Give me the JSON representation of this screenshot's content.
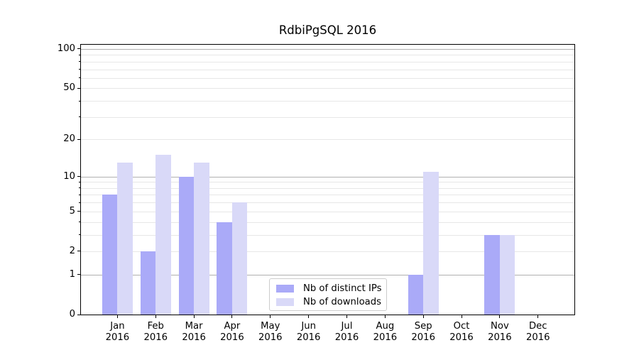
{
  "title": "RdbiPgSQL 2016",
  "year": "2016",
  "months": [
    "Jan",
    "Feb",
    "Mar",
    "Apr",
    "May",
    "Jun",
    "Jul",
    "Aug",
    "Sep",
    "Oct",
    "Nov",
    "Dec"
  ],
  "y_axis": {
    "tick_labels": [
      "0",
      "1",
      "2",
      "5",
      "10",
      "20",
      "50",
      "100"
    ]
  },
  "legend": {
    "items": [
      {
        "label": "Nb of distinct IPs",
        "series": "ips"
      },
      {
        "label": "Nb of downloads",
        "series": "downloads"
      }
    ]
  },
  "colors": {
    "ips": "#aaaaf8",
    "downloads": "#d9d9f8",
    "grid_major": "#b0b0b0",
    "grid_minor": "#e7e7e7",
    "spine": "#000000",
    "legend_border": "#cccccc",
    "text": "#000000"
  },
  "chart_data": {
    "type": "bar",
    "title": "RdbiPgSQL 2016",
    "categories": [
      "Jan 2016",
      "Feb 2016",
      "Mar 2016",
      "Apr 2016",
      "May 2016",
      "Jun 2016",
      "Jul 2016",
      "Aug 2016",
      "Sep 2016",
      "Oct 2016",
      "Nov 2016",
      "Dec 2016"
    ],
    "series": [
      {
        "name": "Nb of distinct IPs",
        "values": [
          7,
          2,
          10,
          4,
          0,
          0,
          0,
          0,
          1,
          0,
          3,
          0
        ]
      },
      {
        "name": "Nb of downloads",
        "values": [
          13,
          15,
          13,
          6,
          0,
          0,
          0,
          0,
          11,
          0,
          3,
          0
        ]
      }
    ],
    "yscale": "log1p",
    "yticks": [
      0,
      1,
      2,
      5,
      10,
      20,
      50,
      100
    ],
    "ylim": [
      0,
      110
    ],
    "grid": "horizontal",
    "legend_position": "lower center",
    "bar_width_fraction": 0.4
  }
}
